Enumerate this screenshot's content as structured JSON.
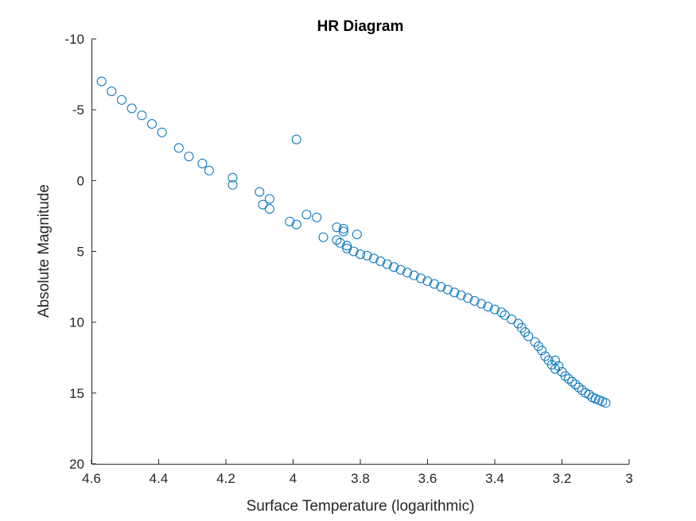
{
  "chart_data": {
    "type": "scatter",
    "title": "HR Diagram",
    "xlabel": "Surface Temperature (logarithmic)",
    "ylabel": "Absolute Magnitude",
    "xlim": [
      4.6,
      3.0
    ],
    "ylim": [
      -10,
      20
    ],
    "x_reversed": true,
    "y_reversed": true,
    "xticks": [
      4.6,
      4.4,
      4.2,
      4.0,
      3.8,
      3.6,
      3.4,
      3.2,
      3.0
    ],
    "xtick_labels": [
      "4.6",
      "4.4",
      "4.2",
      "4",
      "3.8",
      "3.6",
      "3.4",
      "3.2",
      "3"
    ],
    "yticks": [
      -10,
      -5,
      0,
      5,
      10,
      15,
      20
    ],
    "ytick_labels": [
      "-10",
      "-5",
      "0",
      "5",
      "10",
      "15",
      "20"
    ],
    "grid": false,
    "marker": "open-circle",
    "marker_color": "#0072BD",
    "points": [
      [
        4.57,
        -7.0
      ],
      [
        4.54,
        -6.3
      ],
      [
        4.51,
        -5.7
      ],
      [
        4.48,
        -5.1
      ],
      [
        4.45,
        -4.6
      ],
      [
        4.42,
        -4.0
      ],
      [
        4.39,
        -3.4
      ],
      [
        4.34,
        -2.3
      ],
      [
        4.31,
        -1.7
      ],
      [
        4.27,
        -1.2
      ],
      [
        4.25,
        -0.7
      ],
      [
        4.18,
        -0.2
      ],
      [
        4.18,
        0.3
      ],
      [
        4.1,
        0.8
      ],
      [
        4.09,
        1.7
      ],
      [
        4.07,
        1.3
      ],
      [
        4.07,
        2.0
      ],
      [
        3.99,
        -2.9
      ],
      [
        3.96,
        2.4
      ],
      [
        3.93,
        2.6
      ],
      [
        4.01,
        2.9
      ],
      [
        3.99,
        3.1
      ],
      [
        3.91,
        4.0
      ],
      [
        3.87,
        3.3
      ],
      [
        3.85,
        3.4
      ],
      [
        3.85,
        3.6
      ],
      [
        3.81,
        3.8
      ],
      [
        3.87,
        4.2
      ],
      [
        3.86,
        4.4
      ],
      [
        3.84,
        4.6
      ],
      [
        3.84,
        4.8
      ],
      [
        3.82,
        5.0
      ],
      [
        3.8,
        5.2
      ],
      [
        3.78,
        5.3
      ],
      [
        3.76,
        5.5
      ],
      [
        3.74,
        5.7
      ],
      [
        3.72,
        5.9
      ],
      [
        3.7,
        6.1
      ],
      [
        3.68,
        6.3
      ],
      [
        3.66,
        6.5
      ],
      [
        3.64,
        6.7
      ],
      [
        3.62,
        6.9
      ],
      [
        3.6,
        7.1
      ],
      [
        3.58,
        7.3
      ],
      [
        3.56,
        7.5
      ],
      [
        3.54,
        7.7
      ],
      [
        3.52,
        7.9
      ],
      [
        3.5,
        8.1
      ],
      [
        3.48,
        8.3
      ],
      [
        3.46,
        8.5
      ],
      [
        3.44,
        8.7
      ],
      [
        3.42,
        8.9
      ],
      [
        3.4,
        9.1
      ],
      [
        3.38,
        9.3
      ],
      [
        3.37,
        9.5
      ],
      [
        3.35,
        9.8
      ],
      [
        3.33,
        10.1
      ],
      [
        3.32,
        10.4
      ],
      [
        3.31,
        10.7
      ],
      [
        3.3,
        11.0
      ],
      [
        3.28,
        11.4
      ],
      [
        3.27,
        11.7
      ],
      [
        3.26,
        12.0
      ],
      [
        3.25,
        12.4
      ],
      [
        3.24,
        12.7
      ],
      [
        3.23,
        13.0
      ],
      [
        3.22,
        13.3
      ],
      [
        3.22,
        12.7
      ],
      [
        3.21,
        13.1
      ],
      [
        3.2,
        13.5
      ],
      [
        3.19,
        13.8
      ],
      [
        3.18,
        14.0
      ],
      [
        3.17,
        14.2
      ],
      [
        3.16,
        14.4
      ],
      [
        3.15,
        14.6
      ],
      [
        3.14,
        14.8
      ],
      [
        3.13,
        15.0
      ],
      [
        3.12,
        15.1
      ],
      [
        3.11,
        15.3
      ],
      [
        3.1,
        15.4
      ],
      [
        3.09,
        15.5
      ],
      [
        3.08,
        15.6
      ],
      [
        3.07,
        15.7
      ]
    ]
  }
}
